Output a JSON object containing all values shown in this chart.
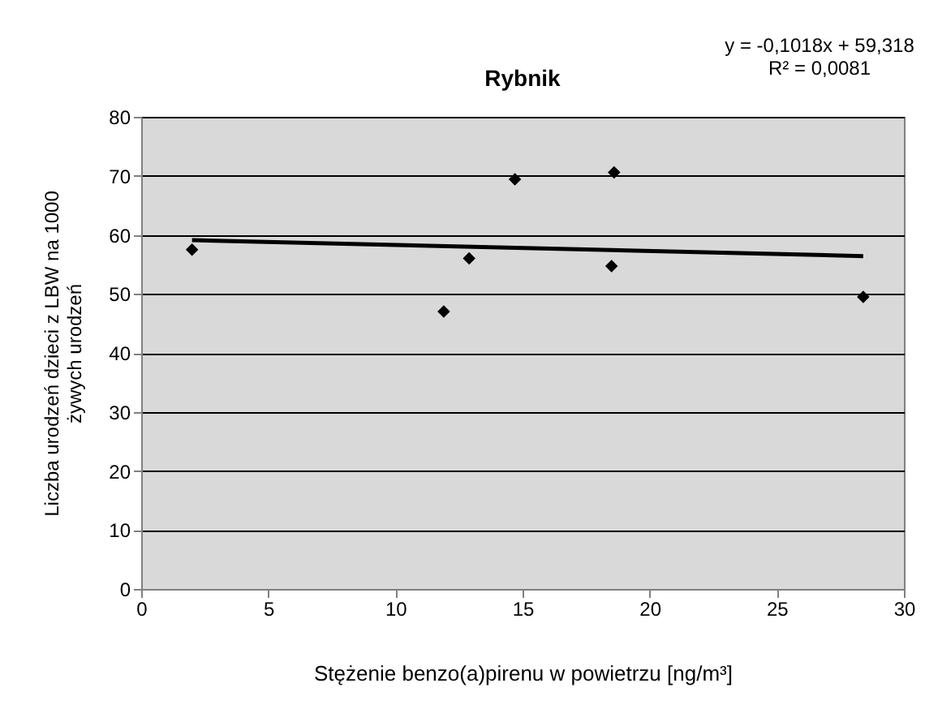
{
  "chart_data": {
    "type": "scatter",
    "title": "Rybnik",
    "xlabel": "Stężenie benzo(a)pirenu w powietrzu [ng/m³]",
    "ylabel": "Liczba urodzeń dzieci z LBW na 1000\nżywych urodzeń",
    "annotations": [
      "y = -0,1018x  + 59,318",
      "R² = 0,0081"
    ],
    "x": [
      2.0,
      11.9,
      12.9,
      14.7,
      18.5,
      18.6,
      28.4
    ],
    "series": [
      {
        "type": "scatter",
        "color": "#000000",
        "marker": "diamond",
        "values": [
          57.5,
          47.0,
          56.0,
          69.4,
          54.7,
          70.6,
          49.5
        ]
      },
      {
        "type": "line",
        "color": "#000000",
        "x": [
          2.0,
          28.4
        ],
        "values": [
          59.1,
          56.4
        ]
      }
    ],
    "xlim": [
      0,
      30
    ],
    "xticks": [
      0,
      5,
      10,
      15,
      20,
      25,
      30
    ],
    "ylim": [
      0,
      80
    ],
    "yticks": [
      0,
      10,
      20,
      30,
      40,
      50,
      60,
      70,
      80
    ],
    "grid": "y"
  }
}
